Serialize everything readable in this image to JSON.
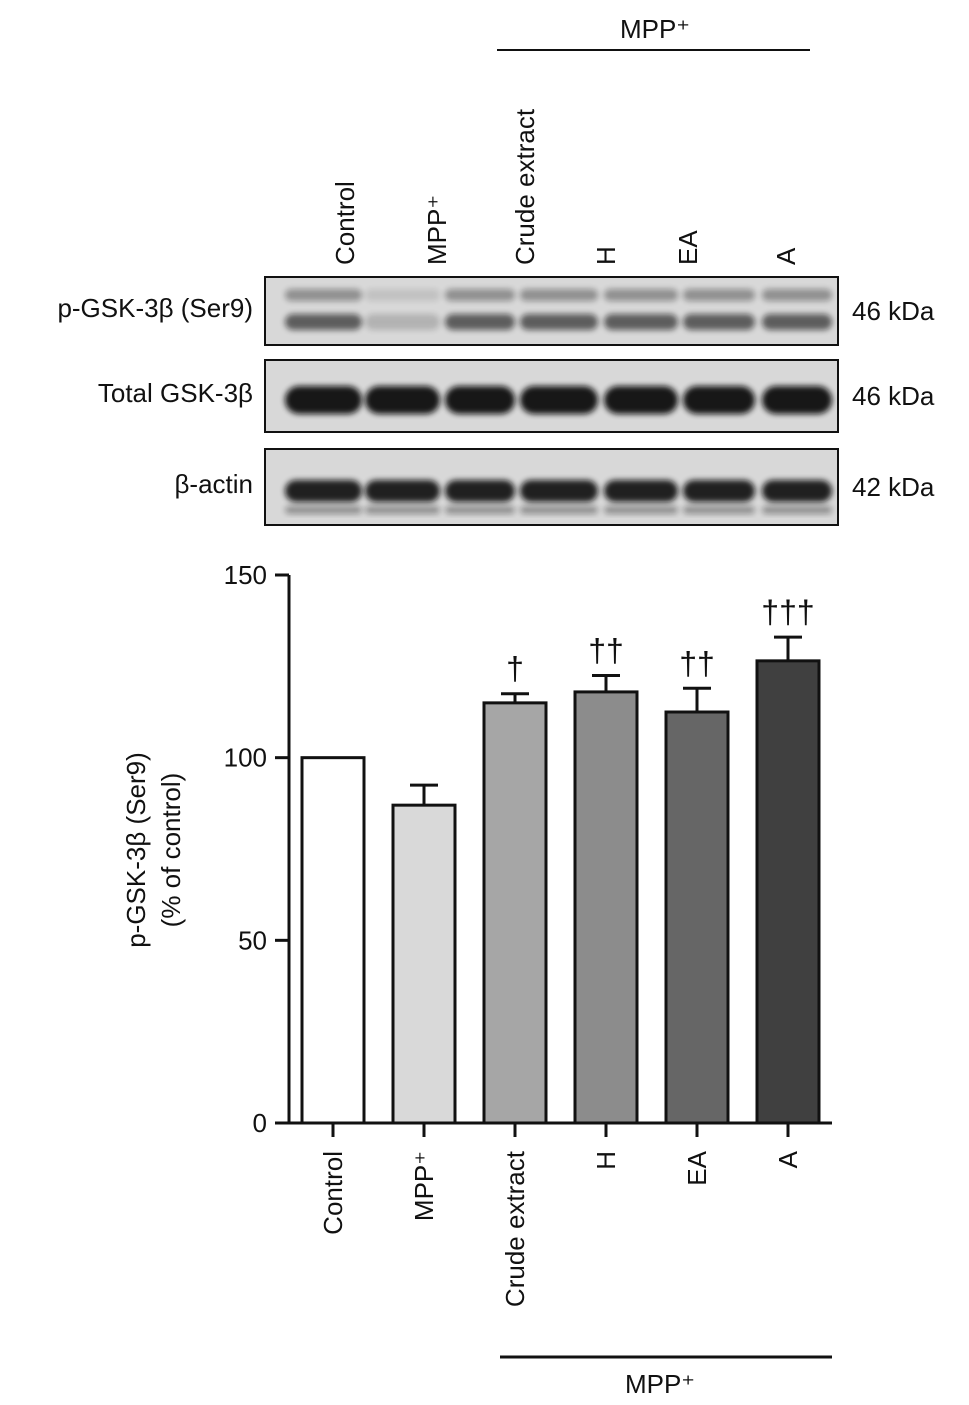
{
  "blot": {
    "group_label": "MPP⁺",
    "lanes": [
      "Control",
      "MPP⁺",
      "Crude extract",
      "H",
      "EA",
      "A"
    ],
    "rows": [
      {
        "label": "p-GSK-3β (Ser9)",
        "size": "46 kDa"
      },
      {
        "label": "Total GSK-3β",
        "size": "46 kDa"
      },
      {
        "label": "β-actin",
        "size": "42 kDa"
      }
    ]
  },
  "chart_data": {
    "type": "bar",
    "ylabel": [
      "p-GSK-3β (Ser9)",
      "(% of control)"
    ],
    "categories": [
      "Control",
      "MPP⁺",
      "Crude extract",
      "H",
      "EA",
      "A"
    ],
    "values": [
      100,
      87,
      115,
      118,
      112.5,
      126.5
    ],
    "errors": [
      null,
      5.5,
      2.5,
      4.5,
      6.5,
      6.5
    ],
    "annotations": [
      null,
      null,
      "†",
      "††",
      "††",
      "†††"
    ],
    "colors": [
      "#ffffff",
      "#d9d9d9",
      "#a6a6a6",
      "#8c8c8c",
      "#666666",
      "#404040"
    ],
    "ylim": [
      0,
      150
    ],
    "yticks": [
      0,
      50,
      100,
      150
    ],
    "group_label": "MPP⁺"
  }
}
